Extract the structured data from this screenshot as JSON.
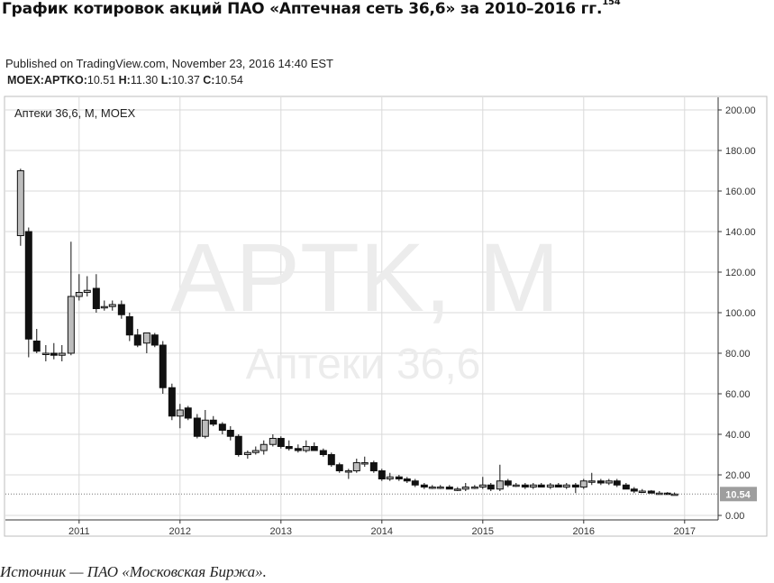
{
  "page": {
    "heading": "График котировок акций ПАО «Аптечная сеть 36,6» за 2010–2016 гг.",
    "footnote": "154",
    "published": "Published on TradingView.com, November 23, 2016 14:40 EST",
    "ohlc": {
      "symbol": "MOEX:APTKO:",
      "open_label": "",
      "open": "10.51",
      "high_label": "H:",
      "high": "11.30",
      "low_label": "L:",
      "low": "10.37",
      "close_label": "C:",
      "close": "10.54"
    },
    "source": "Источник — ПАО «Московская Биржа»."
  },
  "chart_data": {
    "type": "candlestick",
    "title": "Аптеки 36,6, M, MOEX",
    "watermark_main": "APTK, M",
    "watermark_sub": "Аптеки 36,6",
    "last_price_label": "10.54",
    "last_price": 10.54,
    "x_ticks": [
      "2011",
      "2012",
      "2013",
      "2014",
      "2015",
      "2016",
      "2017"
    ],
    "y_ticks": [
      "200.00",
      "180.00",
      "160.00",
      "140.00",
      "120.00",
      "100.00",
      "80.00",
      "60.00",
      "40.00",
      "20.00",
      "0.00"
    ],
    "ylim": [
      0,
      200
    ],
    "xlim": [
      2010.35,
      2017.2
    ],
    "grid": true,
    "colors": {
      "up": "#bdbdbd",
      "down": "#111111",
      "grid": "#d9d9d9",
      "axis": "#333333",
      "watermark": "#ececec"
    },
    "candles": [
      {
        "t": 2010.42,
        "o": 138,
        "h": 171,
        "l": 133,
        "c": 170
      },
      {
        "t": 2010.5,
        "o": 140,
        "h": 142,
        "l": 78,
        "c": 87
      },
      {
        "t": 2010.58,
        "o": 86,
        "h": 92,
        "l": 80,
        "c": 81
      },
      {
        "t": 2010.67,
        "o": 80,
        "h": 84,
        "l": 76,
        "c": 80
      },
      {
        "t": 2010.75,
        "o": 80,
        "h": 85,
        "l": 77,
        "c": 79
      },
      {
        "t": 2010.83,
        "o": 79,
        "h": 84,
        "l": 76,
        "c": 80
      },
      {
        "t": 2010.92,
        "o": 80,
        "h": 135,
        "l": 79,
        "c": 108
      },
      {
        "t": 2011.0,
        "o": 108,
        "h": 119,
        "l": 106,
        "c": 110
      },
      {
        "t": 2011.08,
        "o": 110,
        "h": 118,
        "l": 108,
        "c": 111
      },
      {
        "t": 2011.17,
        "o": 112,
        "h": 119,
        "l": 100,
        "c": 102
      },
      {
        "t": 2011.25,
        "o": 103,
        "h": 106,
        "l": 101,
        "c": 103
      },
      {
        "t": 2011.33,
        "o": 103,
        "h": 106,
        "l": 101,
        "c": 104
      },
      {
        "t": 2011.42,
        "o": 104,
        "h": 106,
        "l": 97,
        "c": 99
      },
      {
        "t": 2011.5,
        "o": 98,
        "h": 100,
        "l": 86,
        "c": 89
      },
      {
        "t": 2011.58,
        "o": 89,
        "h": 92,
        "l": 83,
        "c": 84
      },
      {
        "t": 2011.67,
        "o": 85,
        "h": 90,
        "l": 80,
        "c": 90
      },
      {
        "t": 2011.75,
        "o": 89,
        "h": 90,
        "l": 83,
        "c": 84
      },
      {
        "t": 2011.83,
        "o": 84,
        "h": 86,
        "l": 60,
        "c": 63
      },
      {
        "t": 2011.92,
        "o": 63,
        "h": 65,
        "l": 47,
        "c": 49
      },
      {
        "t": 2012.0,
        "o": 49,
        "h": 55,
        "l": 43,
        "c": 52
      },
      {
        "t": 2012.08,
        "o": 53,
        "h": 54,
        "l": 47,
        "c": 48
      },
      {
        "t": 2012.17,
        "o": 48,
        "h": 50,
        "l": 38,
        "c": 39
      },
      {
        "t": 2012.25,
        "o": 39,
        "h": 52,
        "l": 38,
        "c": 47
      },
      {
        "t": 2012.33,
        "o": 47,
        "h": 49,
        "l": 44,
        "c": 45
      },
      {
        "t": 2012.42,
        "o": 45,
        "h": 46,
        "l": 40,
        "c": 42
      },
      {
        "t": 2012.5,
        "o": 42,
        "h": 44,
        "l": 37,
        "c": 39
      },
      {
        "t": 2012.58,
        "o": 39,
        "h": 40,
        "l": 29,
        "c": 30
      },
      {
        "t": 2012.67,
        "o": 30,
        "h": 32,
        "l": 28,
        "c": 31
      },
      {
        "t": 2012.75,
        "o": 31,
        "h": 34,
        "l": 30,
        "c": 32
      },
      {
        "t": 2012.83,
        "o": 32,
        "h": 37,
        "l": 30,
        "c": 35
      },
      {
        "t": 2012.92,
        "o": 35,
        "h": 40,
        "l": 34,
        "c": 38
      },
      {
        "t": 2013.0,
        "o": 38,
        "h": 39,
        "l": 33,
        "c": 34
      },
      {
        "t": 2013.08,
        "o": 34,
        "h": 37,
        "l": 32,
        "c": 33
      },
      {
        "t": 2013.17,
        "o": 33,
        "h": 35,
        "l": 31,
        "c": 32
      },
      {
        "t": 2013.25,
        "o": 32,
        "h": 37,
        "l": 31,
        "c": 34
      },
      {
        "t": 2013.33,
        "o": 34,
        "h": 36,
        "l": 32,
        "c": 32
      },
      {
        "t": 2013.42,
        "o": 32,
        "h": 33,
        "l": 29,
        "c": 30
      },
      {
        "t": 2013.5,
        "o": 30,
        "h": 31,
        "l": 24,
        "c": 25
      },
      {
        "t": 2013.58,
        "o": 25,
        "h": 26,
        "l": 21,
        "c": 22
      },
      {
        "t": 2013.67,
        "o": 22,
        "h": 23,
        "l": 18,
        "c": 22
      },
      {
        "t": 2013.75,
        "o": 22,
        "h": 28,
        "l": 21,
        "c": 26
      },
      {
        "t": 2013.83,
        "o": 26,
        "h": 29,
        "l": 24,
        "c": 26
      },
      {
        "t": 2013.92,
        "o": 26,
        "h": 27,
        "l": 21,
        "c": 22
      },
      {
        "t": 2014.0,
        "o": 22,
        "h": 23,
        "l": 17,
        "c": 18
      },
      {
        "t": 2014.08,
        "o": 18,
        "h": 21,
        "l": 17,
        "c": 19
      },
      {
        "t": 2014.17,
        "o": 19,
        "h": 20,
        "l": 17,
        "c": 18
      },
      {
        "t": 2014.25,
        "o": 18,
        "h": 19,
        "l": 16,
        "c": 17
      },
      {
        "t": 2014.33,
        "o": 17,
        "h": 18,
        "l": 14,
        "c": 15
      },
      {
        "t": 2014.42,
        "o": 15,
        "h": 16,
        "l": 13,
        "c": 14
      },
      {
        "t": 2014.5,
        "o": 14,
        "h": 15,
        "l": 13,
        "c": 14
      },
      {
        "t": 2014.58,
        "o": 14,
        "h": 15,
        "l": 13,
        "c": 14
      },
      {
        "t": 2014.67,
        "o": 14,
        "h": 15,
        "l": 13,
        "c": 13
      },
      {
        "t": 2014.75,
        "o": 13,
        "h": 14,
        "l": 12,
        "c": 13
      },
      {
        "t": 2014.83,
        "o": 13,
        "h": 16,
        "l": 12,
        "c": 14
      },
      {
        "t": 2014.92,
        "o": 14,
        "h": 15,
        "l": 13,
        "c": 14
      },
      {
        "t": 2015.0,
        "o": 14,
        "h": 19,
        "l": 13,
        "c": 15
      },
      {
        "t": 2015.08,
        "o": 15,
        "h": 16,
        "l": 12,
        "c": 13
      },
      {
        "t": 2015.17,
        "o": 13,
        "h": 25,
        "l": 12,
        "c": 17
      },
      {
        "t": 2015.25,
        "o": 17,
        "h": 18,
        "l": 14,
        "c": 15
      },
      {
        "t": 2015.33,
        "o": 15,
        "h": 16,
        "l": 14,
        "c": 15
      },
      {
        "t": 2015.42,
        "o": 15,
        "h": 16,
        "l": 13,
        "c": 14
      },
      {
        "t": 2015.5,
        "o": 14,
        "h": 16,
        "l": 13,
        "c": 15
      },
      {
        "t": 2015.58,
        "o": 15,
        "h": 16,
        "l": 14,
        "c": 14
      },
      {
        "t": 2015.67,
        "o": 14,
        "h": 16,
        "l": 13,
        "c": 15
      },
      {
        "t": 2015.75,
        "o": 15,
        "h": 16,
        "l": 14,
        "c": 14
      },
      {
        "t": 2015.83,
        "o": 14,
        "h": 16,
        "l": 13,
        "c": 15
      },
      {
        "t": 2015.92,
        "o": 15,
        "h": 16,
        "l": 11,
        "c": 14
      },
      {
        "t": 2016.0,
        "o": 14,
        "h": 18,
        "l": 13,
        "c": 17
      },
      {
        "t": 2016.08,
        "o": 17,
        "h": 21,
        "l": 15,
        "c": 17
      },
      {
        "t": 2016.17,
        "o": 17,
        "h": 18,
        "l": 15,
        "c": 16
      },
      {
        "t": 2016.25,
        "o": 16,
        "h": 18,
        "l": 15,
        "c": 17
      },
      {
        "t": 2016.33,
        "o": 17,
        "h": 18,
        "l": 14,
        "c": 15
      },
      {
        "t": 2016.42,
        "o": 15,
        "h": 16,
        "l": 13,
        "c": 13
      },
      {
        "t": 2016.5,
        "o": 13,
        "h": 14,
        "l": 11,
        "c": 12
      },
      {
        "t": 2016.58,
        "o": 12,
        "h": 13,
        "l": 11,
        "c": 12
      },
      {
        "t": 2016.67,
        "o": 12,
        "h": 12.5,
        "l": 11,
        "c": 11
      },
      {
        "t": 2016.75,
        "o": 11,
        "h": 12,
        "l": 10.5,
        "c": 11
      },
      {
        "t": 2016.83,
        "o": 11,
        "h": 11.5,
        "l": 10.4,
        "c": 10.7
      },
      {
        "t": 2016.9,
        "o": 10.51,
        "h": 11.3,
        "l": 10.37,
        "c": 10.54
      }
    ]
  }
}
